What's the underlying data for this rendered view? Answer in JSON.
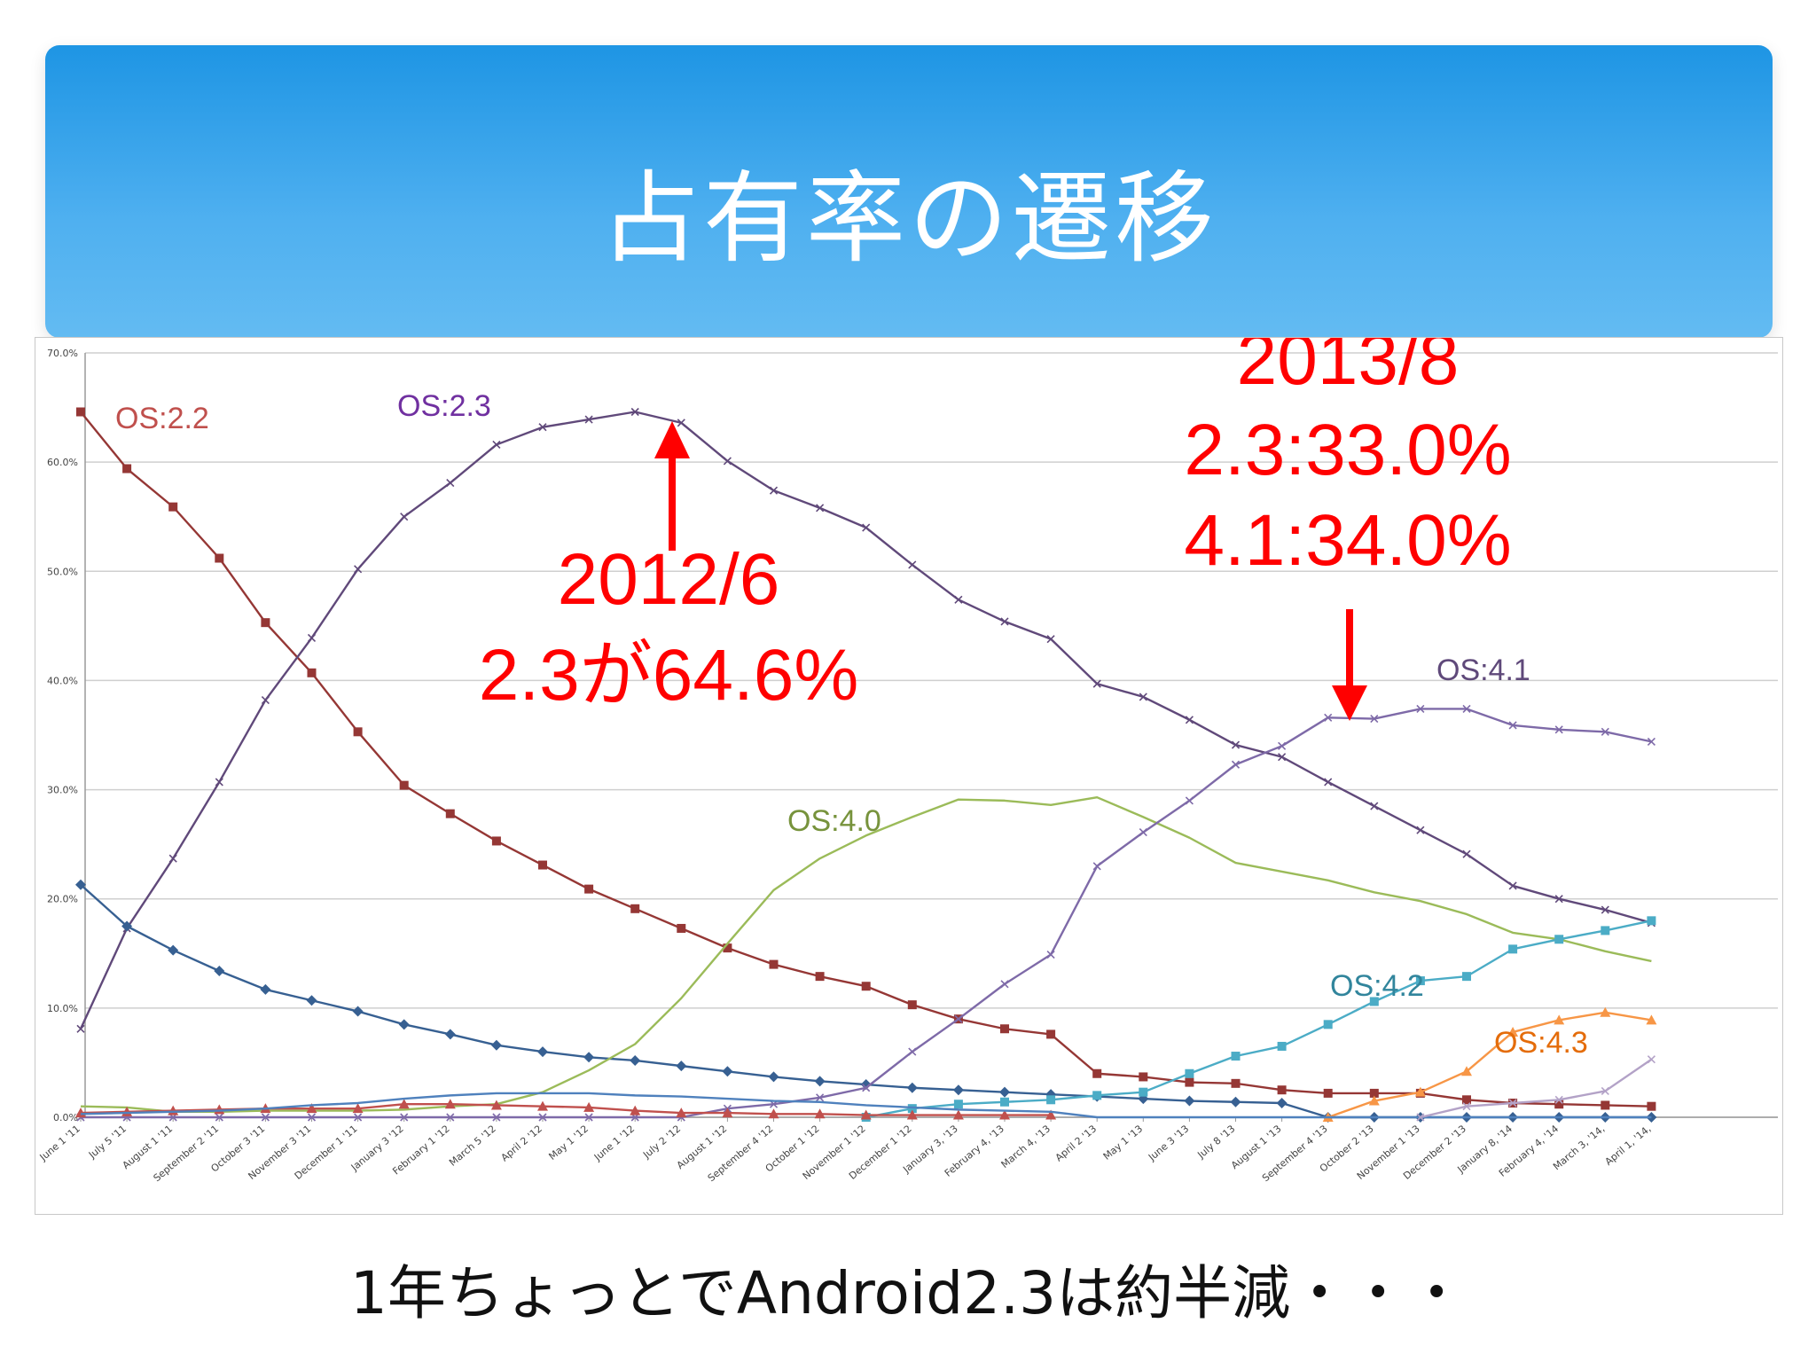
{
  "title": "占有率の遷移",
  "footer": "1年ちょっとでAndroid2.3は約半減・・・",
  "annotations": {
    "june2012": {
      "lines": [
        "2012/6",
        "2.3が64.6%"
      ]
    },
    "aug2013": {
      "lines": [
        "2013/8",
        "2.3:33.0%",
        "4.1:34.0%"
      ]
    }
  },
  "colors": {
    "header_top": "#1e95e4",
    "header_bottom": "#63bbf2",
    "annotation": "#ff0000"
  },
  "chart_data": {
    "type": "line",
    "ylim": [
      0,
      70
    ],
    "yticks": [
      "0.0%",
      "10.0%",
      "20.0%",
      "30.0%",
      "40.0%",
      "50.0%",
      "60.0%",
      "70.0%"
    ],
    "grid": true,
    "categories": [
      "June 1 '11",
      "July 5 '11",
      "August 1 '11",
      "September 2 '11",
      "October 3 '11",
      "November 3 '11",
      "December 1 '11",
      "January 3 '12",
      "February 1 '12",
      "March 5 '12",
      "April 2 '12",
      "May 1 '12",
      "June 1 '12",
      "July 2 '12",
      "August 1 '12",
      "September 4 '12",
      "October 1 '12",
      "November 1 '12",
      "December 1 '12",
      "January 3, '13",
      "February 4, '13",
      "March 4, '13",
      "April 2 '13",
      "May 1 '13",
      "June 3 '13",
      "July 8 '13",
      "August 1 '13",
      "September 4 '13",
      "October 2 '13",
      "November 1 '13",
      "December 2 '13",
      "January 8, '14",
      "February 4, '14",
      "March 3, '14,",
      "April 1, '14,"
    ],
    "series": [
      {
        "name": "OS:2.2",
        "color": "#953735",
        "marker": "square",
        "label_color": "#c0504d",
        "values": [
          64.6,
          59.4,
          55.9,
          51.2,
          45.3,
          40.7,
          35.3,
          30.4,
          27.8,
          25.3,
          23.1,
          20.9,
          19.1,
          17.3,
          15.5,
          14.0,
          12.9,
          12.0,
          10.3,
          9.0,
          8.1,
          7.6,
          4.0,
          3.7,
          3.2,
          3.1,
          2.5,
          2.2,
          2.2,
          2.2,
          1.6,
          1.3,
          1.2,
          1.1,
          1.0
        ]
      },
      {
        "name": "OS:2.3",
        "color": "#60497a",
        "marker": "x",
        "label_color": "#7030a0",
        "values": [
          8.1,
          17.3,
          23.7,
          30.7,
          38.2,
          43.9,
          50.2,
          55.0,
          58.1,
          61.6,
          63.2,
          63.9,
          64.6,
          63.6,
          60.1,
          57.4,
          55.8,
          54.0,
          50.6,
          47.4,
          45.4,
          43.8,
          39.7,
          38.5,
          36.4,
          34.1,
          33.0,
          30.7,
          28.5,
          26.3,
          24.1,
          21.2,
          20.0,
          19.0,
          17.8
        ]
      },
      {
        "name": "",
        "color": "#376092",
        "marker": "diamond",
        "values": [
          21.3,
          17.5,
          15.3,
          13.4,
          11.7,
          10.7,
          9.7,
          8.5,
          7.6,
          6.6,
          6.0,
          5.5,
          5.2,
          4.7,
          4.2,
          3.7,
          3.3,
          3.0,
          2.7,
          2.5,
          2.3,
          2.1,
          1.9,
          1.7,
          1.5,
          1.4,
          1.3,
          0.0,
          0.0,
          0.0,
          0.0,
          0.0,
          0.0,
          0.0,
          0.0
        ]
      },
      {
        "name": "OS:4.0",
        "color": "#9bbb59",
        "marker": "none",
        "label_color": "#77933c",
        "values": [
          1.0,
          0.9,
          0.5,
          0.5,
          0.6,
          0.6,
          0.6,
          0.7,
          1.0,
          1.2,
          2.3,
          4.3,
          6.7,
          10.9,
          15.9,
          20.8,
          23.7,
          25.8,
          27.5,
          29.1,
          29.0,
          28.6,
          29.3,
          27.5,
          25.6,
          23.3,
          22.5,
          21.7,
          20.6,
          19.8,
          18.6,
          16.9,
          16.3,
          15.2,
          14.3
        ]
      },
      {
        "name": "OS:4.1",
        "color": "#7e6aa8",
        "marker": "x",
        "label_color": "#5f497a",
        "values": [
          0.0,
          0.0,
          0.0,
          0.0,
          0.0,
          0.0,
          0.0,
          0.0,
          0.0,
          0.0,
          0.0,
          0.0,
          0.0,
          0.0,
          0.8,
          1.2,
          1.8,
          2.7,
          6.0,
          9.0,
          12.2,
          14.9,
          23.0,
          26.1,
          29.0,
          32.3,
          34.0,
          36.6,
          36.5,
          37.4,
          37.4,
          35.9,
          35.5,
          35.3,
          34.4
        ]
      },
      {
        "name": "OS:4.2",
        "color": "#4bacc6",
        "marker": "square",
        "label_color": "#31859c",
        "values": [
          null,
          null,
          null,
          null,
          null,
          null,
          null,
          null,
          null,
          null,
          null,
          null,
          null,
          null,
          null,
          null,
          null,
          0.0,
          0.8,
          1.2,
          1.4,
          1.6,
          2.0,
          2.3,
          4.0,
          5.6,
          6.5,
          8.5,
          10.6,
          12.5,
          12.9,
          15.4,
          16.3,
          17.1,
          18.0
        ]
      },
      {
        "name": "OS:4.3",
        "color": "#f79646",
        "marker": "triangle",
        "label_color": "#e46c0a",
        "values": [
          null,
          null,
          null,
          null,
          null,
          null,
          null,
          null,
          null,
          null,
          null,
          null,
          null,
          null,
          null,
          null,
          null,
          null,
          null,
          null,
          null,
          null,
          null,
          null,
          null,
          null,
          null,
          0.0,
          1.5,
          2.3,
          4.2,
          7.8,
          8.9,
          9.6,
          8.9
        ]
      },
      {
        "name": "",
        "color": "#c0504d",
        "marker": "triangle",
        "values": [
          0.4,
          0.5,
          0.6,
          0.7,
          0.8,
          0.8,
          0.8,
          1.2,
          1.2,
          1.1,
          1.0,
          0.9,
          0.6,
          0.4,
          0.4,
          0.3,
          0.3,
          0.2,
          0.2,
          0.2,
          0.2,
          0.2,
          null,
          null,
          null,
          null,
          null,
          null,
          null,
          null,
          null,
          null,
          null,
          null,
          null
        ]
      },
      {
        "name": "",
        "color": "#4f81bd",
        "marker": "none",
        "values": [
          0.3,
          0.4,
          0.5,
          0.6,
          0.8,
          1.1,
          1.3,
          1.7,
          2.0,
          2.2,
          2.2,
          2.2,
          2.0,
          1.9,
          1.7,
          1.5,
          1.4,
          1.1,
          0.9,
          0.7,
          0.6,
          0.5,
          0.0,
          0.0,
          0.0,
          0.0,
          0.0,
          0.0,
          0.0,
          0.0,
          0.0,
          0.0,
          0.0,
          0.0,
          0.0
        ]
      },
      {
        "name": "",
        "color": "#b3a2c7",
        "marker": "x",
        "values": [
          null,
          null,
          null,
          null,
          null,
          null,
          null,
          null,
          null,
          null,
          null,
          null,
          null,
          null,
          null,
          null,
          null,
          null,
          null,
          null,
          null,
          null,
          null,
          null,
          null,
          null,
          null,
          null,
          null,
          0.0,
          1.0,
          1.3,
          1.6,
          2.4,
          5.3
        ]
      }
    ]
  }
}
